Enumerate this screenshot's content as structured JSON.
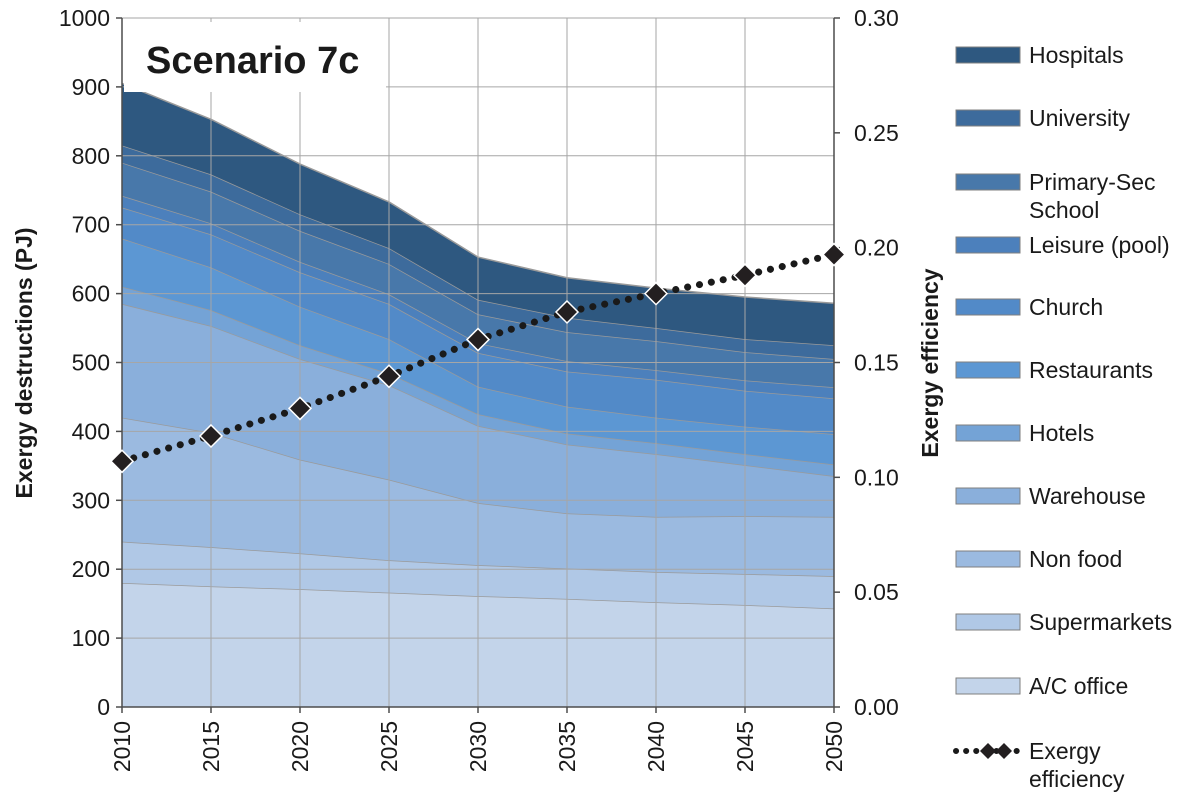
{
  "chart_data": {
    "type": "area",
    "title": "Scenario 7c",
    "xlabel": "",
    "ylabel": "Exergy destructions (PJ)",
    "y2label": "Exergy efficiency",
    "x": [
      "2010",
      "2015",
      "2020",
      "2025",
      "2030",
      "2035",
      "2040",
      "2045",
      "2050"
    ],
    "ylim": [
      0,
      1000
    ],
    "yticks": [
      "0",
      "100",
      "200",
      "300",
      "400",
      "500",
      "600",
      "700",
      "800",
      "900",
      "1000"
    ],
    "y2lim": [
      0,
      0.3
    ],
    "y2ticks": [
      "0.00",
      "0.05",
      "0.10",
      "0.15",
      "0.20",
      "0.25",
      "0.30"
    ],
    "stacked": true,
    "grid": true,
    "legend_position": "right",
    "series": [
      {
        "name": "A/C office",
        "color": "#c3d4ea",
        "values": [
          180,
          175,
          171,
          166,
          161,
          157,
          152,
          148,
          143
        ]
      },
      {
        "name": "Supermarkets",
        "color": "#b0c8e6",
        "values": [
          60,
          57,
          52,
          47,
          45,
          44,
          44,
          45,
          47
        ]
      },
      {
        "name": "Non food",
        "color": "#9bbae0",
        "values": [
          180,
          166,
          136,
          117,
          90,
          80,
          80,
          84,
          86
        ]
      },
      {
        "name": "Warehouse",
        "color": "#8aafdb",
        "values": [
          165,
          155,
          146,
          137,
          112,
          100,
          91,
          74,
          59
        ]
      },
      {
        "name": "Hotels",
        "color": "#74a3d6",
        "values": [
          25,
          23,
          20,
          17,
          17,
          16,
          16,
          16,
          17
        ]
      },
      {
        "name": "Restaurants",
        "color": "#5c97d3",
        "values": [
          70,
          62,
          56,
          50,
          40,
          39,
          37,
          40,
          44
        ]
      },
      {
        "name": "Church",
        "color": "#528ac8",
        "values": [
          45,
          48,
          50,
          51,
          49,
          51,
          55,
          52,
          52
        ]
      },
      {
        "name": "Leisure (pool)",
        "color": "#4c80bc",
        "values": [
          17,
          16,
          15,
          14,
          14,
          15,
          14,
          15,
          16
        ]
      },
      {
        "name": "Primary-Sec School",
        "color": "#4878aa",
        "values": [
          48,
          46,
          45,
          44,
          42,
          42,
          42,
          41,
          41
        ]
      },
      {
        "name": "University",
        "color": "#3d6b9c",
        "values": [
          25,
          25,
          24,
          23,
          21,
          21,
          19,
          19,
          20
        ]
      },
      {
        "name": "Hospitals",
        "color": "#2e5880",
        "values": [
          90,
          80,
          73,
          67,
          62,
          58,
          58,
          61,
          61
        ]
      }
    ],
    "line_series": {
      "name": "Exergy efficiency",
      "axis": "right",
      "color": "#1a1a1a",
      "values": [
        0.107,
        0.118,
        0.13,
        0.144,
        0.16,
        0.172,
        0.18,
        0.188,
        0.197
      ]
    }
  }
}
